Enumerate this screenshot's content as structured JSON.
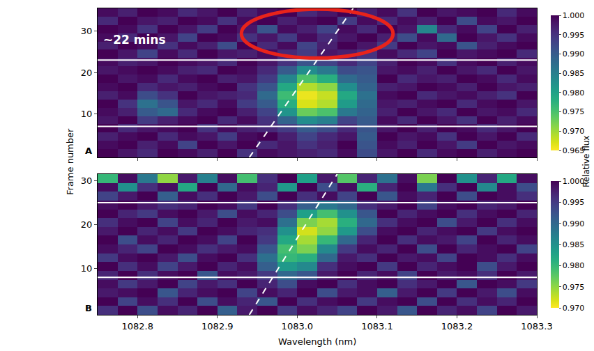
{
  "chart_data": [
    {
      "type": "heatmap",
      "panel": "A",
      "x": [
        1082.7625,
        1082.7875,
        1082.8125,
        1082.8375,
        1082.8625,
        1082.8875,
        1082.9125,
        1082.9375,
        1082.9625,
        1082.9875,
        1083.0125,
        1083.0375,
        1083.0625,
        1083.0875,
        1083.1125,
        1083.1375,
        1083.1625,
        1083.1875,
        1083.2125,
        1083.2375,
        1083.2625,
        1083.2875
      ],
      "y": [
        0.5,
        2.5,
        4.5,
        6.5,
        8.5,
        10.5,
        12.5,
        14.5,
        16.5,
        18.5,
        20.5,
        22.5,
        24.5,
        26.5,
        28.5,
        30.5,
        32.5,
        34.5
      ],
      "z": [
        [
          1.0,
          0.998,
          0.996,
          1.0,
          0.999,
          0.997,
          1.0,
          0.995,
          0.999,
          0.998,
          0.997,
          0.996,
          0.999,
          0.992,
          0.998,
          1.0,
          0.996,
          0.999,
          1.0,
          0.997,
          0.999,
          1.0
        ],
        [
          0.999,
          1.0,
          0.997,
          0.999,
          0.993,
          1.0,
          0.998,
          1.0,
          0.996,
          0.998,
          0.995,
          0.997,
          1.0,
          0.991,
          0.999,
          0.997,
          1.0,
          0.998,
          0.994,
          1.0,
          0.998,
          0.999
        ],
        [
          0.997,
          0.999,
          1.0,
          0.996,
          0.999,
          0.998,
          0.994,
          0.999,
          1.0,
          0.997,
          0.993,
          0.996,
          0.998,
          0.99,
          1.0,
          0.998,
          0.999,
          0.995,
          1.0,
          0.998,
          1.0,
          0.996
        ],
        [
          1.0,
          0.996,
          0.998,
          0.999,
          1.0,
          0.995,
          0.999,
          0.997,
          0.996,
          0.994,
          0.99,
          0.992,
          0.996,
          0.991,
          0.998,
          1.0,
          0.997,
          1.0,
          0.999,
          0.996,
          0.998,
          1.0
        ],
        [
          0.998,
          1.0,
          0.994,
          0.997,
          0.999,
          1.0,
          0.996,
          0.999,
          0.995,
          0.989,
          0.983,
          0.985,
          0.993,
          0.99,
          0.999,
          0.996,
          1.0,
          0.998,
          0.995,
          1.0,
          0.997,
          0.999
        ],
        [
          0.999,
          0.997,
          0.99,
          0.988,
          0.996,
          0.999,
          1.0,
          0.997,
          0.993,
          0.982,
          0.973,
          0.975,
          0.986,
          0.989,
          0.997,
          1.0,
          0.998,
          0.996,
          1.0,
          0.998,
          0.999,
          0.996
        ],
        [
          1.0,
          0.995,
          0.987,
          0.991,
          0.998,
          0.996,
          0.999,
          0.994,
          0.99,
          0.978,
          0.967,
          0.969,
          0.981,
          0.988,
          0.998,
          0.997,
          0.999,
          1.0,
          0.996,
          0.999,
          1.0,
          0.998
        ],
        [
          0.997,
          0.999,
          0.992,
          0.995,
          1.0,
          0.998,
          0.997,
          0.996,
          0.988,
          0.976,
          0.966,
          0.968,
          0.979,
          0.987,
          0.999,
          1.0,
          0.996,
          0.998,
          0.999,
          0.997,
          0.995,
          1.0
        ],
        [
          0.999,
          1.0,
          0.996,
          0.998,
          0.997,
          0.999,
          1.0,
          0.995,
          0.991,
          0.979,
          0.969,
          0.971,
          0.983,
          0.989,
          0.997,
          0.998,
          1.0,
          0.999,
          0.997,
          1.0,
          0.998,
          0.997
        ],
        [
          1.0,
          0.998,
          0.999,
          0.996,
          0.999,
          1.0,
          0.997,
          0.998,
          0.994,
          0.984,
          0.975,
          0.978,
          0.988,
          0.99,
          1.0,
          0.996,
          0.998,
          0.997,
          1.0,
          0.999,
          0.996,
          0.999
        ],
        [
          0.998,
          0.999,
          1.0,
          0.999,
          0.997,
          0.996,
          1.0,
          0.999,
          0.996,
          0.99,
          0.983,
          0.986,
          0.992,
          0.991,
          0.998,
          0.999,
          0.997,
          1.0,
          0.998,
          0.996,
          1.0,
          0.998
        ],
        [
          0.999,
          0.997,
          0.998,
          1.0,
          0.999,
          0.998,
          0.996,
          1.0,
          0.998,
          0.995,
          0.991,
          0.993,
          0.996,
          0.993,
          0.997,
          1.0,
          0.999,
          0.995,
          0.999,
          1.0,
          0.997,
          0.999
        ],
        [
          1.0,
          0.998,
          0.993,
          0.999,
          0.996,
          1.0,
          0.998,
          0.997,
          0.999,
          0.996,
          0.994,
          0.998,
          0.997,
          0.995,
          0.999,
          0.996,
          0.993,
          1.0,
          0.998,
          0.999,
          1.0,
          0.996
        ],
        [
          0.997,
          1.0,
          0.999,
          0.995,
          0.999,
          0.997,
          0.992,
          1.0,
          0.996,
          0.999,
          0.993,
          0.997,
          1.0,
          0.998,
          0.994,
          1.0,
          0.998,
          0.999,
          0.991,
          0.997,
          0.999,
          1.0
        ],
        [
          0.999,
          0.996,
          1.0,
          0.998,
          0.993,
          1.0,
          0.999,
          0.995,
          0.998,
          0.994,
          0.999,
          0.996,
          0.998,
          1.0,
          0.997,
          0.992,
          0.999,
          0.988,
          1.0,
          0.998,
          0.995,
          0.999
        ],
        [
          1.0,
          0.999,
          0.995,
          1.0,
          0.998,
          0.994,
          1.0,
          0.998,
          0.991,
          0.999,
          0.997,
          0.993,
          0.999,
          0.996,
          1.0,
          0.998,
          0.984,
          0.996,
          0.999,
          0.993,
          1.0,
          0.997
        ],
        [
          0.996,
          1.0,
          0.998,
          0.997,
          1.0,
          0.999,
          0.995,
          0.999,
          1.0,
          0.997,
          0.999,
          1.0,
          0.994,
          0.999,
          0.996,
          0.999,
          0.997,
          1.0,
          0.992,
          0.999,
          0.998,
          1.0
        ],
        [
          0.999,
          0.997,
          1.0,
          0.999,
          0.996,
          0.998,
          1.0,
          0.997,
          0.999,
          1.0,
          0.996,
          0.998,
          1.0,
          0.997,
          0.999,
          0.995,
          1.0,
          0.998,
          0.999,
          1.0,
          0.996,
          0.999
        ]
      ],
      "xlim": [
        1082.75,
        1083.3
      ],
      "xticks": [
        1082.8,
        1082.9,
        {
          "value": 1083,
          "label": "1083.0"
        },
        1083.1,
        1083.2,
        1083.3
      ],
      "ylim": [
        -0.5,
        35.5
      ],
      "yticks": [
        10,
        20,
        30
      ],
      "colorbar": {
        "range": [
          0.965,
          1.0
        ],
        "ticks": [
          {
            "value": 1,
            "label": "1.000"
          },
          0.995,
          {
            "value": 0.99,
            "label": "0.990"
          },
          0.985,
          {
            "value": 0.98,
            "label": "0.980"
          },
          0.975,
          {
            "value": 0.97,
            "label": "0.970"
          },
          0.965
        ]
      },
      "hlines": [
        7,
        23
      ],
      "track": {
        "x": [
          1082.94,
          1083.07
        ],
        "y": [
          -0.5,
          35.5
        ]
      },
      "highlight": {
        "x": [
          1082.93,
          1083.12
        ],
        "y": [
          23.5,
          35.3
        ]
      },
      "annotations": [
        {
          "text": "~22 mins",
          "x": 1082.755,
          "y": 28
        }
      ]
    },
    {
      "type": "heatmap",
      "panel": "B",
      "x": [
        1082.7625,
        1082.7875,
        1082.8125,
        1082.8375,
        1082.8625,
        1082.8875,
        1082.9125,
        1082.9375,
        1082.9625,
        1082.9875,
        1083.0125,
        1083.0375,
        1083.0625,
        1083.0875,
        1083.1125,
        1083.1375,
        1083.1625,
        1083.1875,
        1083.2125,
        1083.2375,
        1083.2625,
        1083.2875
      ],
      "y": [
        0.5,
        2.5,
        4.5,
        6.5,
        8.5,
        10.5,
        12.5,
        14.5,
        16.5,
        18.5,
        20.5,
        22.5,
        24.5,
        26.5,
        28.5,
        30.5
      ],
      "z": [
        [
          0.996,
          1.0,
          0.993,
          0.999,
          0.997,
          1.0,
          0.991,
          0.998,
          1.0,
          0.995,
          0.999,
          0.997,
          0.994,
          1.0,
          0.998,
          0.992,
          1.0,
          0.997,
          0.999,
          0.994,
          1.0,
          0.998
        ],
        [
          1.0,
          0.994,
          0.999,
          0.996,
          1.0,
          0.993,
          0.999,
          0.997,
          0.992,
          1.0,
          0.996,
          0.999,
          1.0,
          0.995,
          0.999,
          1.0,
          0.993,
          1.0,
          0.996,
          0.999,
          0.997,
          1.0
        ],
        [
          0.998,
          0.999,
          1.0,
          0.992,
          0.997,
          0.999,
          1.0,
          0.994,
          0.999,
          0.997,
          1.0,
          0.993,
          0.998,
          0.999,
          0.991,
          0.998,
          1.0,
          0.995,
          1.0,
          0.998,
          0.993,
          0.999
        ],
        [
          0.999,
          0.995,
          0.998,
          1.0,
          0.994,
          0.998,
          0.996,
          1.0,
          0.997,
          0.993,
          0.999,
          1.0,
          0.996,
          0.999,
          1.0,
          0.996,
          0.998,
          1.0,
          0.992,
          1.0,
          0.999,
          0.995
        ],
        [
          0.997,
          1.0,
          0.996,
          0.999,
          1.0,
          0.992,
          0.999,
          0.998,
          0.995,
          0.99,
          0.992,
          0.998,
          1.0,
          0.997,
          0.999,
          0.994,
          1.0,
          0.998,
          0.999,
          0.996,
          1.0,
          0.998
        ],
        [
          1.0,
          0.996,
          0.999,
          0.994,
          0.998,
          1.0,
          0.997,
          0.999,
          0.991,
          0.984,
          0.986,
          0.996,
          0.999,
          1.0,
          0.995,
          1.0,
          0.997,
          0.999,
          1.0,
          0.993,
          0.998,
          1.0
        ],
        [
          0.995,
          0.999,
          1.0,
          0.998,
          0.993,
          0.999,
          1.0,
          0.996,
          0.989,
          0.98,
          0.981,
          0.99,
          0.998,
          0.996,
          1.0,
          0.998,
          0.999,
          0.994,
          1.0,
          0.999,
          0.996,
          0.999
        ],
        [
          0.999,
          0.997,
          0.994,
          1.0,
          0.999,
          0.996,
          0.998,
          0.999,
          0.992,
          0.979,
          0.976,
          0.986,
          0.995,
          0.999,
          0.997,
          1.0,
          0.993,
          1.0,
          0.997,
          0.999,
          1.0,
          0.994
        ],
        [
          1.0,
          0.993,
          0.999,
          0.997,
          1.0,
          0.999,
          0.994,
          1.0,
          0.995,
          0.982,
          0.974,
          0.98,
          0.99,
          0.997,
          1.0,
          0.996,
          0.999,
          0.998,
          0.994,
          1.0,
          0.997,
          0.999
        ],
        [
          0.998,
          1.0,
          0.997,
          0.999,
          0.995,
          1.0,
          0.999,
          0.997,
          0.996,
          0.985,
          0.972,
          0.975,
          0.984,
          0.993,
          0.999,
          1.0,
          0.997,
          0.999,
          1.0,
          0.995,
          0.999,
          1.0
        ],
        [
          0.996,
          0.999,
          1.0,
          0.994,
          0.999,
          0.997,
          1.0,
          0.998,
          0.999,
          0.989,
          0.976,
          0.974,
          0.981,
          0.99,
          0.996,
          0.999,
          1.0,
          0.993,
          0.998,
          1.0,
          0.996,
          0.999
        ],
        [
          1.0,
          0.997,
          0.995,
          0.999,
          1.0,
          0.998,
          0.993,
          0.999,
          0.997,
          0.993,
          0.983,
          0.979,
          0.985,
          0.992,
          1.0,
          0.997,
          0.999,
          1.0,
          0.996,
          0.999,
          1.0,
          0.997
        ],
        [
          0.999,
          1.0,
          0.998,
          0.996,
          0.997,
          1.0,
          0.999,
          0.995,
          1.0,
          0.996,
          0.991,
          0.988,
          0.99,
          0.996,
          0.998,
          1.0,
          0.994,
          0.999,
          1.0,
          0.997,
          0.998,
          1.0
        ],
        [
          0.994,
          0.998,
          1.0,
          0.991,
          0.999,
          0.996,
          1.0,
          0.998,
          0.993,
          1.0,
          0.996,
          0.999,
          0.994,
          1.0,
          0.992,
          0.999,
          0.997,
          1.0,
          0.993,
          1.0,
          0.999,
          0.996
        ],
        [
          0.999,
          0.985,
          0.996,
          0.999,
          0.982,
          1.0,
          0.99,
          0.999,
          0.997,
          0.984,
          1.0,
          0.993,
          0.999,
          0.981,
          0.997,
          1.0,
          0.988,
          0.996,
          1.0,
          0.986,
          0.999,
          0.993
        ],
        [
          0.98,
          0.999,
          0.988,
          0.975,
          0.998,
          0.987,
          0.999,
          0.979,
          0.996,
          1.0,
          0.983,
          0.998,
          0.978,
          0.997,
          0.989,
          0.999,
          0.976,
          1.0,
          0.985,
          0.997,
          0.982,
          0.999
        ]
      ],
      "xlim": [
        1082.75,
        1083.3
      ],
      "xticks": [
        1082.8,
        1082.9,
        {
          "value": 1083,
          "label": "1083.0"
        },
        1083.1,
        1083.2,
        1083.3
      ],
      "ylim": [
        -0.5,
        31.5
      ],
      "yticks": [
        10,
        20,
        30
      ],
      "colorbar": {
        "range": [
          0.97,
          1.0
        ],
        "ticks": [
          {
            "value": 1,
            "label": "1.000"
          },
          0.995,
          {
            "value": 0.99,
            "label": "0.990"
          },
          0.985,
          {
            "value": 0.98,
            "label": "0.980"
          },
          0.975,
          {
            "value": 0.97,
            "label": "0.970"
          }
        ]
      },
      "hlines": [
        8,
        25
      ],
      "track": {
        "x": [
          1082.94,
          1083.05
        ],
        "y": [
          -0.5,
          31.5
        ]
      }
    }
  ],
  "xlabel": "Wavelength (nm)",
  "ylabel": "Frame number",
  "colorbar_label": "Relative flux"
}
